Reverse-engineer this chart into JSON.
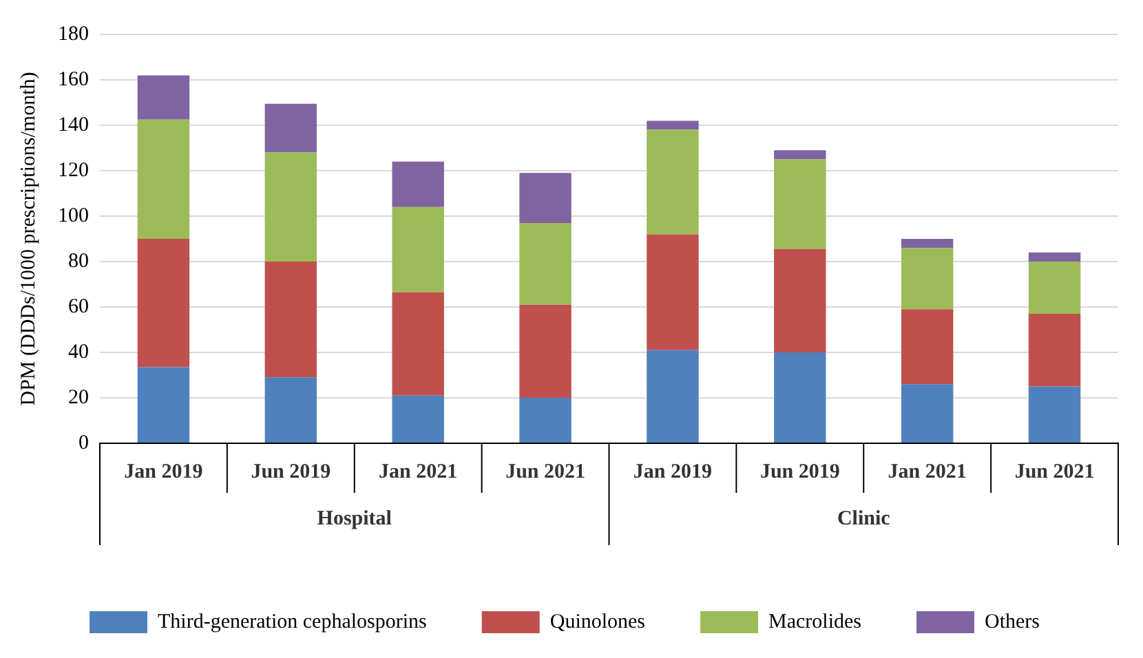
{
  "chart_data": {
    "type": "bar",
    "stacked": true,
    "ylabel": "DPM (DDDs/1000 prescriptions/month)",
    "categories": [
      "Jan 2019",
      "Jun 2019",
      "Jan 2021",
      "Jun 2021",
      "Jan 2019",
      "Jun 2019",
      "Jan 2021",
      "Jun 2021"
    ],
    "annotations": [
      "Hospital",
      "Clinic"
    ],
    "series": [
      {
        "name": "Third-generation cephalosporins",
        "color": "#4f81bd",
        "values": [
          33.5,
          29,
          21,
          20,
          41,
          40,
          26,
          25
        ]
      },
      {
        "name": "Quinolones",
        "color": "#c0504d",
        "values": [
          56.5,
          51,
          45.5,
          41,
          51,
          45.5,
          33,
          32
        ]
      },
      {
        "name": "Macrolides",
        "color": "#9bbb59",
        "values": [
          52.5,
          48,
          37.5,
          36,
          46,
          39.5,
          27,
          23
        ]
      },
      {
        "name": "Others",
        "color": "#8064a2",
        "values": [
          19.5,
          21.5,
          20,
          22,
          4,
          4,
          4,
          4
        ]
      }
    ],
    "ylim": [
      0,
      180
    ],
    "yticks": [
      0,
      20,
      40,
      60,
      80,
      100,
      120,
      140,
      160,
      180
    ],
    "grid": "y",
    "legend": "bottom"
  }
}
